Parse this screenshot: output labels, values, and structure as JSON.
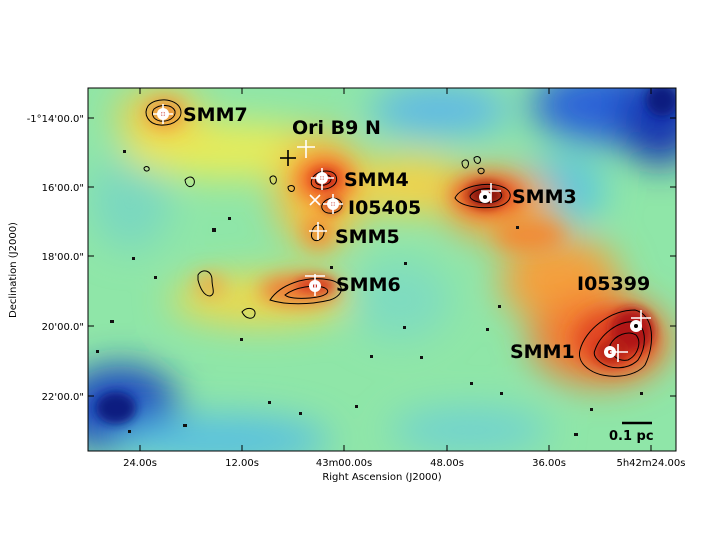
{
  "figure": {
    "x_axis_title": "Right Ascension (J2000)",
    "y_axis_title": "Declination (J2000)",
    "x_tick_labels": [
      "24.00s",
      "12.00s",
      "43m00.00s",
      "48.00s",
      "36.00s",
      "5h42m24.00s"
    ],
    "y_tick_labels": [
      "-1°14'00.0\"",
      "16'00.0\"",
      "18'00.0\"",
      "20'00.0\"",
      "22'00.0\""
    ],
    "scale_bar_label": "0.1 pc",
    "colormap": [
      "#08209c",
      "#2a64d8",
      "#3fb2e8",
      "#5ed8c8",
      "#a8e87a",
      "#f0ee50",
      "#fbb240",
      "#f26028",
      "#c02018",
      "#6a0c08"
    ],
    "sources": [
      {
        "label": "SMM7"
      },
      {
        "label": "Ori B9 N"
      },
      {
        "label": "SMM4"
      },
      {
        "label": "I05405"
      },
      {
        "label": "SMM5"
      },
      {
        "label": "SMM3"
      },
      {
        "label": "SMM6"
      },
      {
        "label": "I05399"
      },
      {
        "label": "SMM1"
      }
    ]
  }
}
